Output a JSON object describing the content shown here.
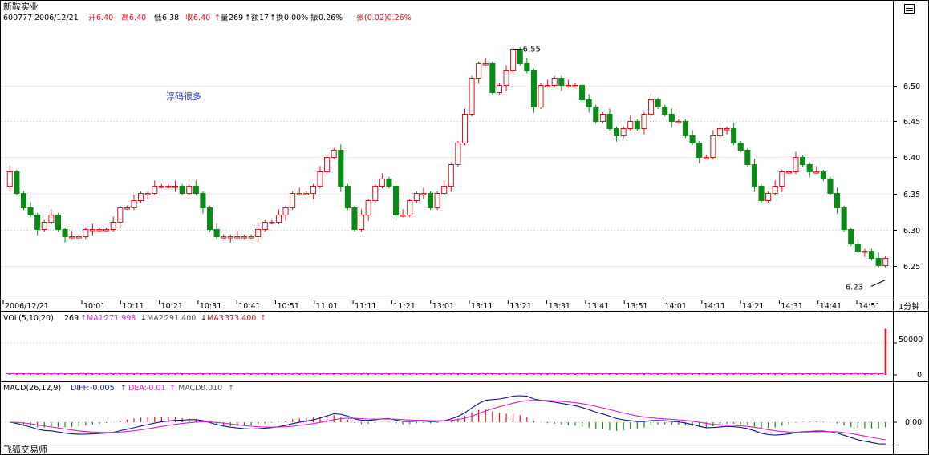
{
  "header": {
    "stock_name": "新鞍实业",
    "code": "600777",
    "date": "2006/12/21",
    "open_label": "开",
    "open": "6.40",
    "high_label": "高",
    "high": "6.40",
    "low_label": "低",
    "low": "6.38",
    "close_label": "收",
    "close": "6.40",
    "close_arrow": "↑",
    "volume_label": "量",
    "volume": "269",
    "volume_arrow": "↑",
    "amount_label": "额",
    "amount": "17",
    "amount_arrow": "↑",
    "turnover_label": "换",
    "turnover": "0.00%",
    "amplitude_label": "振",
    "amplitude": "0.26%",
    "change_label": "张",
    "change": "(0.02)0.26%"
  },
  "annotation_text": "浮码很多",
  "period_label": "1分钟",
  "panel_icon": "window-icon",
  "volume_panel": {
    "title": "VOL(5,10,20)",
    "vol_value": "269",
    "vol_arrow": "↑",
    "ma1_label": "MA1:",
    "ma1_value": "271.998",
    "ma1_arrow": "↓",
    "ma2_label": "MA2:",
    "ma2_value": "291.400",
    "ma2_arrow": "↓",
    "ma3_label": "MA3:",
    "ma3_value": "373.400",
    "ma3_arrow": "↑",
    "axis_top": "50000",
    "axis_zero": "0"
  },
  "macd_panel": {
    "title": "MACD(26,12,9)",
    "diff_label": "DIFF:",
    "diff_value": "-0.005",
    "diff_arrow": "↑",
    "dea_label": "DEA:",
    "dea_value": "-0.01",
    "dea_arrow": "↑",
    "macd_label": "MACD:",
    "macd_value": "0.010",
    "macd_arrow": "↑",
    "axis_label": "0.00"
  },
  "footer_brand": "飞狐交易师",
  "colors": {
    "up": "#e0101a",
    "down": "#0a8a17",
    "diff": "#10148c",
    "dea": "#d820c8",
    "ma3": "#c4102e",
    "annotation": "#1c2ccc",
    "grid": "#c9c9c9"
  },
  "chart_data": {
    "type": "candlestick",
    "interval": "1 minute",
    "date": "2006/12/21",
    "ylim": [
      6.205,
      6.585
    ],
    "yticks": [
      6.25,
      6.3,
      6.35,
      6.4,
      6.45,
      6.5
    ],
    "ytick_labels": [
      "6.25",
      "6.30",
      "6.35",
      "6.40",
      "6.45",
      "6.50"
    ],
    "xticks": [
      "2006/12/21",
      "10:01",
      "10:11",
      "10:21",
      "10:31",
      "10:41",
      "10:51",
      "11:01",
      "11:11",
      "11:21",
      "13:01",
      "13:11",
      "13:21",
      "13:31",
      "13:41",
      "13:51",
      "14:01",
      "14:11",
      "14:21",
      "14:31",
      "14:41",
      "14:51"
    ],
    "max_marker": "6.55",
    "min_marker": "6.23",
    "max_value": 6.55,
    "min_value": 6.23,
    "close_points": [
      6.38,
      6.35,
      6.33,
      6.32,
      6.3,
      6.31,
      6.32,
      6.3,
      6.29,
      6.29,
      6.29,
      6.3,
      6.3,
      6.3,
      6.3,
      6.31,
      6.33,
      6.33,
      6.34,
      6.35,
      6.35,
      6.36,
      6.36,
      6.36,
      6.36,
      6.35,
      6.36,
      6.35,
      6.33,
      6.3,
      6.29,
      6.29,
      6.29,
      6.29,
      6.29,
      6.29,
      6.3,
      6.31,
      6.31,
      6.32,
      6.33,
      6.35,
      6.35,
      6.35,
      6.36,
      6.38,
      6.4,
      6.41,
      6.36,
      6.33,
      6.3,
      6.32,
      6.34,
      6.36,
      6.37,
      6.36,
      6.32,
      6.32,
      6.34,
      6.35,
      6.35,
      6.33,
      6.35,
      6.36,
      6.39,
      6.42,
      6.46,
      6.51,
      6.53,
      6.53,
      6.49,
      6.5,
      6.52,
      6.55,
      6.53,
      6.52,
      6.47,
      6.5,
      6.5,
      6.51,
      6.5,
      6.5,
      6.5,
      6.48,
      6.47,
      6.45,
      6.46,
      6.44,
      6.43,
      6.44,
      6.45,
      6.44,
      6.46,
      6.48,
      6.47,
      6.46,
      6.45,
      6.45,
      6.43,
      6.42,
      6.4,
      6.4,
      6.43,
      6.44,
      6.44,
      6.42,
      6.41,
      6.39,
      6.36,
      6.34,
      6.35,
      6.36,
      6.38,
      6.38,
      6.4,
      6.39,
      6.38,
      6.38,
      6.37,
      6.35,
      6.33,
      6.3,
      6.28,
      6.27,
      6.27,
      6.26,
      6.25,
      6.26
    ],
    "volume": {
      "ylim": [
        0,
        80000
      ],
      "yticks": [
        0,
        50000
      ],
      "last_bar": 72000
    },
    "macd": {
      "zero_label": "0.00",
      "diff_last": -0.005,
      "dea_last": -0.01,
      "macd_last": 0.01
    }
  }
}
